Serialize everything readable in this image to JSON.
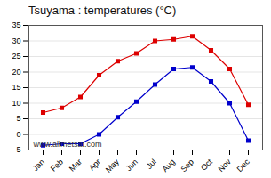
{
  "chart_data": {
    "type": "line",
    "title": "Tsuyama : temperatures (°C)",
    "categories": [
      "Jan",
      "Feb",
      "Mar",
      "Apr",
      "May",
      "Jun",
      "Jul",
      "Aug",
      "Sep",
      "Oct",
      "Nov",
      "Dec"
    ],
    "series": [
      {
        "color": "#dd0000",
        "values": [
          7.0,
          8.5,
          12.0,
          19.0,
          23.5,
          26.0,
          30.0,
          30.5,
          31.5,
          27.0,
          21.0,
          9.5
        ]
      },
      {
        "color": "#0000cc",
        "values": [
          -3.5,
          -3.0,
          -3.0,
          0.0,
          5.5,
          10.5,
          16.0,
          21.0,
          21.5,
          17.0,
          10.0,
          -2.0
        ]
      }
    ],
    "marker": "square",
    "ylim": [
      -5,
      35
    ],
    "yticks": [
      -5,
      0,
      5,
      10,
      15,
      20,
      25,
      30,
      35
    ],
    "grid": true,
    "annotations": [
      {
        "text": "www.allmetsat.com"
      }
    ]
  }
}
